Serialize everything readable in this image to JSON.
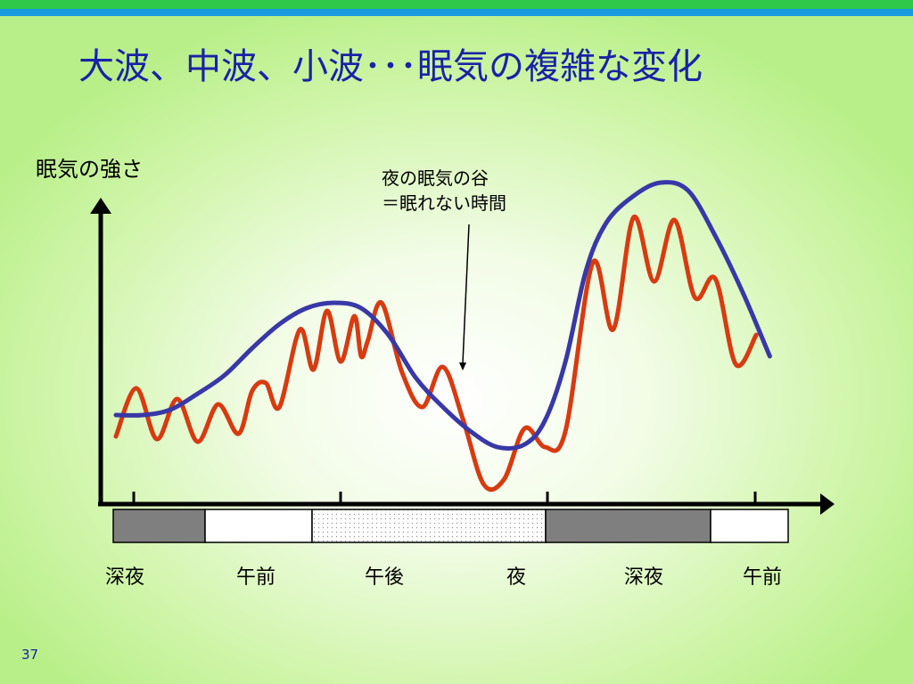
{
  "title": "大波、中波、小波･･･眠気の複雑な変化",
  "page_number": "37",
  "ylabel": "眠気の強さ",
  "annotation": {
    "line1": "夜の眠気の谷",
    "line2": "＝眠れない時間"
  },
  "time_labels": [
    "深夜",
    "午前",
    "午後",
    "夜",
    "深夜",
    "午前"
  ],
  "colors": {
    "title": "#1a22a8",
    "fast_wave": "#d93a10",
    "slow_wave": "#3838a8",
    "dark_band": "#7f7f7f",
    "light_band": "#ffffff",
    "dotted_band": "#ffffff"
  },
  "chart_data": {
    "type": "line",
    "title": "",
    "xlabel": "",
    "ylabel": "眠気の強さ",
    "categories": [
      "深夜",
      "午前",
      "午後",
      "夜",
      "深夜",
      "午前"
    ],
    "series": [
      {
        "values": [
          [
            0,
            20
          ],
          [
            3,
            38
          ],
          [
            6,
            19
          ],
          [
            9,
            34
          ],
          [
            12,
            18
          ],
          [
            15,
            32
          ],
          [
            18,
            21
          ],
          [
            20,
            37
          ],
          [
            22,
            40
          ],
          [
            24,
            31
          ],
          [
            27,
            60
          ],
          [
            29,
            45
          ],
          [
            31,
            67
          ],
          [
            33,
            48
          ],
          [
            35,
            65
          ],
          [
            36,
            50
          ],
          [
            37,
            56
          ],
          [
            39,
            70
          ],
          [
            42,
            44
          ],
          [
            45,
            31
          ],
          [
            48,
            46
          ],
          [
            51,
            26
          ],
          [
            54,
            2
          ],
          [
            57,
            4
          ],
          [
            60,
            23
          ],
          [
            63,
            16
          ],
          [
            66,
            22
          ],
          [
            70,
            85
          ],
          [
            73,
            60
          ],
          [
            76,
            102
          ],
          [
            79,
            78
          ],
          [
            82,
            101
          ],
          [
            85,
            72
          ],
          [
            88,
            79
          ],
          [
            91,
            47
          ],
          [
            94,
            58
          ]
        ]
      },
      {
        "values": [
          [
            0,
            28
          ],
          [
            4,
            28
          ],
          [
            8,
            30
          ],
          [
            12,
            36
          ],
          [
            16,
            43
          ],
          [
            20,
            53
          ],
          [
            24,
            62
          ],
          [
            28,
            68
          ],
          [
            32,
            70
          ],
          [
            36,
            68
          ],
          [
            40,
            58
          ],
          [
            44,
            42
          ],
          [
            48,
            31
          ],
          [
            52,
            22
          ],
          [
            56,
            16
          ],
          [
            60,
            17
          ],
          [
            63,
            26
          ],
          [
            66,
            48
          ],
          [
            69,
            82
          ],
          [
            72,
            100
          ],
          [
            76,
            110
          ],
          [
            80,
            115
          ],
          [
            84,
            112
          ],
          [
            88,
            95
          ],
          [
            92,
            74
          ],
          [
            96,
            50
          ]
        ]
      }
    ],
    "xlim": [
      0,
      100
    ],
    "ylim": [
      0,
      130
    ],
    "axis_ticks": false,
    "grid": false,
    "legend": "none"
  }
}
